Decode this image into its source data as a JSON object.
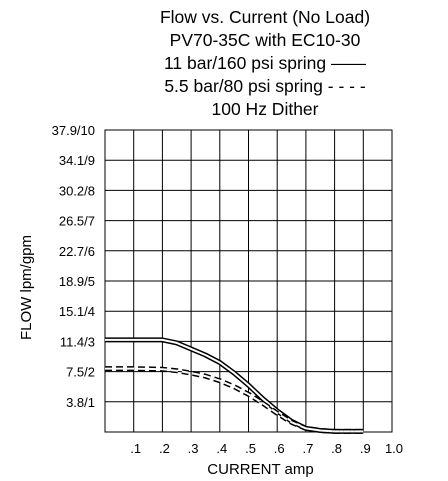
{
  "chart_data": {
    "type": "line",
    "title_lines": [
      "Flow vs. Current (No Load)",
      "PV70-35C  with EC10-30",
      "11 bar/160 psi spring ——",
      "5.5 bar/80 psi spring - - - -",
      "100 Hz Dither"
    ],
    "xlabel": "CURRENT amp",
    "ylabel": "FLOW lpm/gpm",
    "xlim": [
      0,
      1.0
    ],
    "ylim": [
      0,
      10
    ],
    "x_ticks": [
      0.1,
      0.2,
      0.3,
      0.4,
      0.5,
      0.6,
      0.7,
      0.8,
      0.9,
      1.0
    ],
    "x_tick_labels": [
      ".1",
      ".2",
      ".3",
      ".4",
      ".5",
      ".6",
      ".7",
      ".8",
      ".9",
      "1.0"
    ],
    "y_ticks": [
      1,
      2,
      3,
      4,
      5,
      6,
      7,
      8,
      9,
      10
    ],
    "y_tick_labels": [
      "3.8/1",
      "7.5/2",
      "11.4/3",
      "15.1/4",
      "18.9/5",
      "22.7/6",
      "26.5/7",
      "30.2/8",
      "34.1/9",
      "37.9/10"
    ],
    "grid": true,
    "series": [
      {
        "style": "solid-double",
        "x": [
          0,
          0.1,
          0.2,
          0.25,
          0.3,
          0.35,
          0.4,
          0.45,
          0.5,
          0.55,
          0.6,
          0.65,
          0.7,
          0.75,
          0.8,
          0.9
        ],
        "y": [
          3.05,
          3.05,
          3.05,
          2.95,
          2.75,
          2.55,
          2.3,
          1.95,
          1.55,
          1.1,
          0.7,
          0.35,
          0.12,
          0.05,
          0.02,
          0.02
        ]
      },
      {
        "style": "dashed-double",
        "x": [
          0,
          0.1,
          0.2,
          0.25,
          0.3,
          0.35,
          0.4,
          0.45,
          0.5,
          0.55,
          0.6,
          0.65,
          0.7,
          0.75,
          0.8,
          0.9
        ],
        "y": [
          2.1,
          2.1,
          2.08,
          2.03,
          1.95,
          1.85,
          1.7,
          1.5,
          1.25,
          0.95,
          0.62,
          0.32,
          0.12,
          0.05,
          0.02,
          0.02
        ]
      }
    ]
  }
}
